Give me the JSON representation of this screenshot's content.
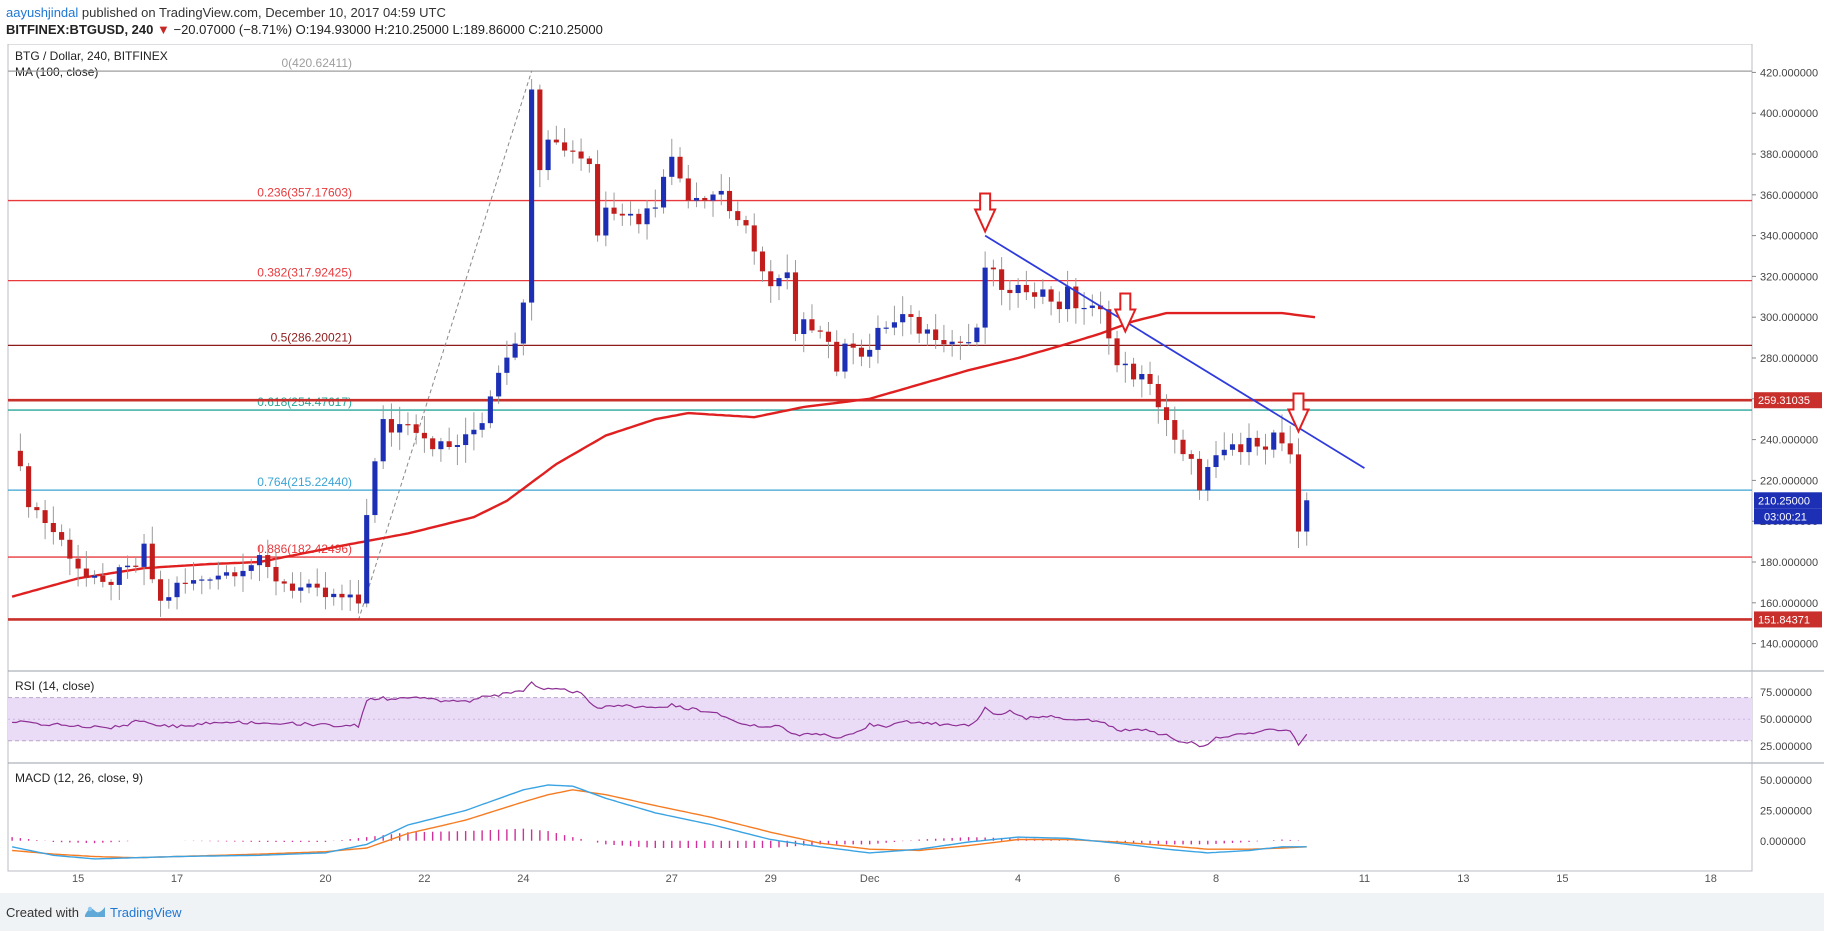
{
  "header": {
    "author": "aayushjindal",
    "published": "published on TradingView.com, December 10, 2017 04:59 UTC",
    "symbol_line": "BITFINEX:BTGUSD, 240",
    "arrow": "▼",
    "change": "−20.07000 (−8.71%)",
    "ohlc": "O:194.93000 H:210.25000 L:189.86000 C:210.25000"
  },
  "footer": {
    "created_with": "Created with",
    "brand": "TradingView"
  },
  "colors": {
    "bull": "#1c2fb5",
    "bear": "#c21d1d",
    "ma": "#e02020",
    "trend": "#2f3bdc",
    "rsi_band": "#eadcf7",
    "rsi_line": "#8e2f95",
    "macd_line": "#3aa3e3",
    "signal_line": "#f57c23",
    "hist": "#d0309a",
    "fib_red": "#e8393d",
    "fib_dark": "#8e1b1b",
    "fib_green": "#26a69a",
    "fib_blue": "#3aa3d4",
    "sr": "#c9302c",
    "marker": "#e02020"
  },
  "chart_data": [
    {
      "type": "candlestick",
      "title": "BTG / Dollar, 240, BITFINEX",
      "indicator_label": "MA (100, close)",
      "ylim": [
        130,
        430
      ],
      "y_ticks": [
        "140.000000",
        "160.000000",
        "180.000000",
        "200.000000",
        "220.000000",
        "240.000000",
        "260.000000",
        "280.000000",
        "300.000000",
        "320.000000",
        "340.000000",
        "360.000000",
        "380.000000",
        "400.000000",
        "420.000000"
      ],
      "x_ticks": [
        {
          "label": "15",
          "t": 8
        },
        {
          "label": "17",
          "t": 20
        },
        {
          "label": "20",
          "t": 38
        },
        {
          "label": "22",
          "t": 50
        },
        {
          "label": "24",
          "t": 62
        },
        {
          "label": "27",
          "t": 80
        },
        {
          "label": "29",
          "t": 92
        },
        {
          "label": "Dec",
          "t": 104
        },
        {
          "label": "4",
          "t": 122
        },
        {
          "label": "6",
          "t": 134
        },
        {
          "label": "8",
          "t": 146
        },
        {
          "label": "11",
          "t": 164
        },
        {
          "label": "13",
          "t": 176
        },
        {
          "label": "15",
          "t": 188
        },
        {
          "label": "18",
          "t": 206
        }
      ],
      "x_range": [
        -0.5,
        211
      ],
      "anchors": [
        [
          0,
          238
        ],
        [
          2,
          210
        ],
        [
          4,
          200
        ],
        [
          6,
          190
        ],
        [
          8,
          178
        ],
        [
          9,
          172
        ],
        [
          11,
          168
        ],
        [
          13,
          174
        ],
        [
          15,
          178
        ],
        [
          16,
          186
        ],
        [
          17,
          172
        ],
        [
          18,
          160
        ],
        [
          20,
          168
        ],
        [
          22,
          170
        ],
        [
          24,
          174
        ],
        [
          26,
          175
        ],
        [
          28,
          178
        ],
        [
          30,
          180
        ],
        [
          32,
          172
        ],
        [
          34,
          168
        ],
        [
          36,
          166
        ],
        [
          38,
          163
        ],
        [
          40,
          162
        ],
        [
          42,
          160
        ],
        [
          43,
          205
        ],
        [
          44,
          228
        ],
        [
          45,
          248
        ],
        [
          46,
          245
        ],
        [
          48,
          250
        ],
        [
          50,
          242
        ],
        [
          51,
          238
        ],
        [
          53,
          236
        ],
        [
          55,
          240
        ],
        [
          57,
          250
        ],
        [
          59,
          275
        ],
        [
          61,
          290
        ],
        [
          62,
          305
        ],
        [
          63,
          415
        ],
        [
          64,
          375
        ],
        [
          65,
          390
        ],
        [
          66,
          385
        ],
        [
          68,
          382
        ],
        [
          70,
          376
        ],
        [
          71,
          340
        ],
        [
          72,
          356
        ],
        [
          74,
          352
        ],
        [
          76,
          348
        ],
        [
          78,
          356
        ],
        [
          79,
          372
        ],
        [
          80,
          377
        ],
        [
          82,
          360
        ],
        [
          84,
          360
        ],
        [
          86,
          362
        ],
        [
          87,
          353
        ],
        [
          88,
          348
        ],
        [
          89,
          342
        ],
        [
          90,
          330
        ],
        [
          91,
          325
        ],
        [
          92,
          315
        ],
        [
          94,
          320
        ],
        [
          95,
          290
        ],
        [
          96,
          296
        ],
        [
          98,
          296
        ],
        [
          99,
          288
        ],
        [
          100,
          275
        ],
        [
          101,
          284
        ],
        [
          102,
          288
        ],
        [
          103,
          283
        ],
        [
          104,
          284
        ],
        [
          105,
          292
        ],
        [
          106,
          296
        ],
        [
          107,
          297
        ],
        [
          108,
          300
        ],
        [
          110,
          294
        ],
        [
          112,
          292
        ],
        [
          114,
          288
        ],
        [
          116,
          288
        ],
        [
          117,
          292
        ],
        [
          118,
          325
        ],
        [
          119,
          320
        ],
        [
          121,
          310
        ],
        [
          123,
          315
        ],
        [
          125,
          312
        ],
        [
          127,
          306
        ],
        [
          128,
          312
        ],
        [
          129,
          306
        ],
        [
          130,
          305
        ],
        [
          132,
          302
        ],
        [
          133,
          293
        ],
        [
          134,
          276
        ],
        [
          135,
          275
        ],
        [
          136,
          272
        ],
        [
          137,
          270
        ],
        [
          138,
          265
        ],
        [
          139,
          258
        ],
        [
          140,
          250
        ],
        [
          141,
          238
        ],
        [
          142,
          231
        ],
        [
          143,
          228
        ],
        [
          144,
          218
        ],
        [
          145,
          225
        ],
        [
          146,
          230
        ],
        [
          147,
          232
        ],
        [
          148,
          237
        ],
        [
          149,
          234
        ],
        [
          150,
          238
        ],
        [
          151,
          240
        ],
        [
          152,
          238
        ],
        [
          153,
          242
        ],
        [
          154,
          238
        ],
        [
          155,
          230
        ],
        [
          156,
          198
        ],
        [
          157,
          210
        ]
      ],
      "ma_100": [
        [
          0,
          163
        ],
        [
          8,
          172
        ],
        [
          16,
          177
        ],
        [
          24,
          179
        ],
        [
          30,
          180
        ],
        [
          40,
          188
        ],
        [
          48,
          194
        ],
        [
          56,
          202
        ],
        [
          60,
          210
        ],
        [
          66,
          228
        ],
        [
          72,
          242
        ],
        [
          78,
          250
        ],
        [
          82,
          253
        ],
        [
          90,
          251
        ],
        [
          96,
          256
        ],
        [
          104,
          260
        ],
        [
          110,
          267
        ],
        [
          116,
          274
        ],
        [
          122,
          280
        ],
        [
          128,
          287
        ],
        [
          132,
          292
        ],
        [
          136,
          298
        ],
        [
          140,
          302
        ],
        [
          146,
          302
        ],
        [
          150,
          302
        ],
        [
          154,
          302
        ],
        [
          158,
          300
        ]
      ],
      "fib_levels": [
        {
          "label": "0(420.62411)",
          "value": 420.62411,
          "tone": "grey"
        },
        {
          "label": "0.236(357.17603)",
          "value": 357.17603,
          "tone": "red"
        },
        {
          "label": "0.382(317.92425)",
          "value": 317.92425,
          "tone": "red"
        },
        {
          "label": "0.5(286.20021)",
          "value": 286.20021,
          "tone": "dark"
        },
        {
          "label": "0.618(254.47617)",
          "value": 254.47617,
          "tone": "green"
        },
        {
          "label": "0.764(215.22440)",
          "value": 215.2244,
          "tone": "blue"
        },
        {
          "label": "0.886(182.42496)",
          "value": 182.42496,
          "tone": "red"
        }
      ],
      "fib_swing": {
        "from": [
          42,
          151.5
        ],
        "to": [
          63,
          420.6
        ]
      },
      "support_resistance": [
        {
          "value": 259.31035,
          "label": "259.31035"
        },
        {
          "value": 151.84371,
          "label": "151.84371"
        }
      ],
      "trendline": {
        "from": [
          118,
          340
        ],
        "to": [
          164,
          226
        ]
      },
      "markers": [
        {
          "t": 118,
          "value": 342
        },
        {
          "t": 135,
          "value": 293
        },
        {
          "t": 156,
          "value": 244
        }
      ],
      "last_price": {
        "label": "210.25000",
        "value": 210.25
      },
      "countdown": {
        "label": "03:00:21",
        "value": 198.5
      }
    },
    {
      "type": "line",
      "title": "RSI (14, close)",
      "ylim": [
        15,
        90
      ],
      "band": [
        30,
        70
      ],
      "y_ticks": [
        "25.000000",
        "50.000000",
        "75.000000"
      ],
      "values": [
        [
          0,
          48
        ],
        [
          3,
          45
        ],
        [
          6,
          45
        ],
        [
          9,
          43
        ],
        [
          12,
          42
        ],
        [
          14,
          45
        ],
        [
          15,
          48
        ],
        [
          18,
          45
        ],
        [
          20,
          43
        ],
        [
          22,
          45
        ],
        [
          25,
          48
        ],
        [
          28,
          47
        ],
        [
          31,
          47
        ],
        [
          34,
          46
        ],
        [
          38,
          45
        ],
        [
          41,
          44
        ],
        [
          42,
          44
        ],
        [
          43,
          68
        ],
        [
          45,
          70
        ],
        [
          46,
          68
        ],
        [
          48,
          71
        ],
        [
          50,
          70
        ],
        [
          52,
          66
        ],
        [
          55,
          66
        ],
        [
          57,
          70
        ],
        [
          60,
          74
        ],
        [
          62,
          77
        ],
        [
          63,
          85
        ],
        [
          64,
          79
        ],
        [
          66,
          78
        ],
        [
          69,
          74
        ],
        [
          71,
          60
        ],
        [
          73,
          63
        ],
        [
          76,
          61
        ],
        [
          78,
          60
        ],
        [
          80,
          63
        ],
        [
          82,
          60
        ],
        [
          85,
          56
        ],
        [
          87,
          50
        ],
        [
          89,
          45
        ],
        [
          91,
          43
        ],
        [
          93,
          44
        ],
        [
          95,
          35
        ],
        [
          96,
          37
        ],
        [
          98,
          36
        ],
        [
          100,
          33
        ],
        [
          102,
          37
        ],
        [
          104,
          45
        ],
        [
          106,
          43
        ],
        [
          108,
          48
        ],
        [
          110,
          46
        ],
        [
          112,
          46
        ],
        [
          114,
          44
        ],
        [
          116,
          44
        ],
        [
          117,
          50
        ],
        [
          118,
          60
        ],
        [
          119,
          54
        ],
        [
          121,
          57
        ],
        [
          123,
          50
        ],
        [
          125,
          54
        ],
        [
          127,
          51
        ],
        [
          129,
          50
        ],
        [
          131,
          49
        ],
        [
          133,
          45
        ],
        [
          134,
          40
        ],
        [
          136,
          40
        ],
        [
          138,
          39
        ],
        [
          140,
          35
        ],
        [
          141,
          30
        ],
        [
          143,
          29
        ],
        [
          144,
          24
        ],
        [
          146,
          32
        ],
        [
          148,
          35
        ],
        [
          150,
          37
        ],
        [
          152,
          40
        ],
        [
          154,
          39
        ],
        [
          155,
          38
        ],
        [
          156,
          26
        ],
        [
          157,
          36
        ]
      ]
    },
    {
      "type": "line",
      "title": "MACD (12, 26, close, 9)",
      "ylim": [
        -20,
        60
      ],
      "y_ticks": [
        "0.000000",
        "25.000000",
        "50.000000"
      ],
      "zero_ref": 0,
      "macd": [
        [
          0,
          -5
        ],
        [
          5,
          -12
        ],
        [
          10,
          -15
        ],
        [
          15,
          -14
        ],
        [
          20,
          -13
        ],
        [
          30,
          -12
        ],
        [
          38,
          -10
        ],
        [
          43,
          -3
        ],
        [
          48,
          13
        ],
        [
          55,
          25
        ],
        [
          62,
          42
        ],
        [
          65,
          46
        ],
        [
          68,
          45
        ],
        [
          72,
          35
        ],
        [
          78,
          23
        ],
        [
          85,
          13
        ],
        [
          92,
          1
        ],
        [
          98,
          -5
        ],
        [
          104,
          -10
        ],
        [
          110,
          -7
        ],
        [
          116,
          -1
        ],
        [
          122,
          3
        ],
        [
          128,
          2
        ],
        [
          134,
          -2
        ],
        [
          140,
          -7
        ],
        [
          145,
          -10
        ],
        [
          150,
          -8
        ],
        [
          154,
          -5
        ],
        [
          157,
          -5
        ]
      ],
      "signal": [
        [
          0,
          -8
        ],
        [
          5,
          -11
        ],
        [
          10,
          -13
        ],
        [
          15,
          -14
        ],
        [
          20,
          -13
        ],
        [
          30,
          -11
        ],
        [
          38,
          -9
        ],
        [
          43,
          -6
        ],
        [
          48,
          6
        ],
        [
          55,
          17
        ],
        [
          62,
          32
        ],
        [
          65,
          38
        ],
        [
          68,
          42
        ],
        [
          72,
          38
        ],
        [
          78,
          29
        ],
        [
          85,
          19
        ],
        [
          92,
          7
        ],
        [
          98,
          -2
        ],
        [
          104,
          -7
        ],
        [
          110,
          -8
        ],
        [
          116,
          -4
        ],
        [
          122,
          1
        ],
        [
          128,
          1
        ],
        [
          134,
          -1
        ],
        [
          140,
          -4
        ],
        [
          145,
          -7
        ],
        [
          150,
          -7
        ],
        [
          154,
          -6
        ],
        [
          157,
          -5
        ]
      ],
      "hist_range": [
        42,
        58
      ]
    }
  ]
}
